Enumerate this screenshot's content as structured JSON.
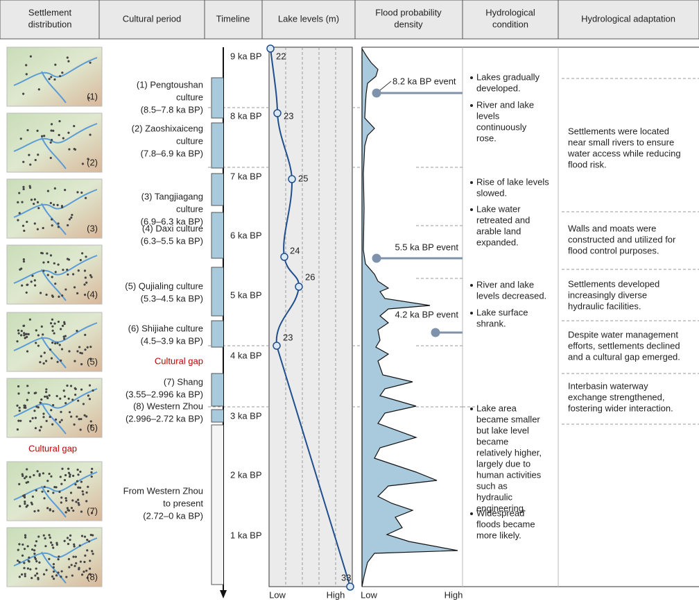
{
  "header": [
    [
      "Settlement",
      "distribution"
    ],
    [
      "Cultural period"
    ],
    [
      "Timeline"
    ],
    [
      "Lake levels (m)"
    ],
    [
      "Flood probability",
      "density"
    ],
    [
      "Hydrological",
      "condition"
    ],
    [
      "Hydrological adaptation"
    ]
  ],
  "maps": [
    "(1)",
    "(2)",
    "(3)",
    "(4)",
    "(5)",
    "(6)",
    "(7)",
    "(8)"
  ],
  "settlement_gap": "Cultural gap",
  "periods": [
    [
      "(1) Pengtoushan",
      "culture",
      "(8.5–7.8 ka BP)"
    ],
    [
      "(2) Zaoshixaiceng",
      "culture",
      "(7.8–6.9 ka BP)"
    ],
    [
      "(3) Tangjiagang",
      "culture",
      "(6.9–6.3 ka BP)"
    ],
    [
      "(4) Daxi culture",
      "(6.3–5.5 ka BP)"
    ],
    [
      "(5) Qujialing culture",
      "(5.3–4.5 ka BP)"
    ],
    [
      "(6) Shijiahe culture",
      "(4.5–3.9 ka BP)"
    ],
    [
      "(7) Shang",
      "(3.55–2.996 ka BP)"
    ],
    [
      "(8) Western Zhou",
      "(2.996–2.72 ka BP)"
    ],
    [
      "From Western Zhou",
      "to present",
      "(2.72–0 ka BP)"
    ]
  ],
  "period_gap": "Cultural gap",
  "timeline": [
    "9 ka BP",
    "8 ka BP",
    "7 ka BP",
    "6 ka BP",
    "5 ka BP",
    "4 ka BP",
    "3 ka BP",
    "2 ka BP",
    "1 ka BP"
  ],
  "lake_levels": {
    "values": [
      22,
      23,
      25,
      24,
      26,
      23,
      33
    ],
    "low": "Low",
    "high": "High"
  },
  "flood": {
    "events": [
      "8.2 ka BP event",
      "5.5 ka BP event",
      "4.2 ka BP event"
    ],
    "low": "Low",
    "high": "High"
  },
  "hydrological_condition": [
    [
      [
        "Lakes gradually",
        "developed."
      ],
      [
        "River and lake",
        "levels",
        "continuously",
        "rose."
      ]
    ],
    [
      [
        "Rise of lake levels",
        "slowed."
      ],
      [
        "Lake water",
        "retreated and",
        "arable land",
        "expanded."
      ]
    ],
    [
      [
        "River and lake",
        "levels decreased."
      ],
      [
        "Lake surface",
        "shrank."
      ]
    ],
    [
      [
        "Lake area",
        "became smaller",
        "but lake level",
        "became",
        "relatively higher,",
        "largely due to",
        "human activities",
        "such as",
        "hydraulic",
        "engineering."
      ],
      [
        "Widespread",
        "floods became",
        "more likely."
      ]
    ]
  ],
  "adaptation": [
    [
      "Settlements were located",
      "near small rivers to ensure",
      "water access while reducing",
      "flood risk."
    ],
    [
      "Walls and moats were",
      "constructed and utilized for",
      "flood control purposes."
    ],
    [
      "Settlements developed",
      "increasingly diverse",
      "hydraulic facilities."
    ],
    [
      "Despite water management",
      "efforts, settlements declined",
      "and a cultural gap emerged."
    ],
    [
      "Interbasin waterway",
      "exchange strengthened,",
      "fostering wider interaction."
    ]
  ]
}
